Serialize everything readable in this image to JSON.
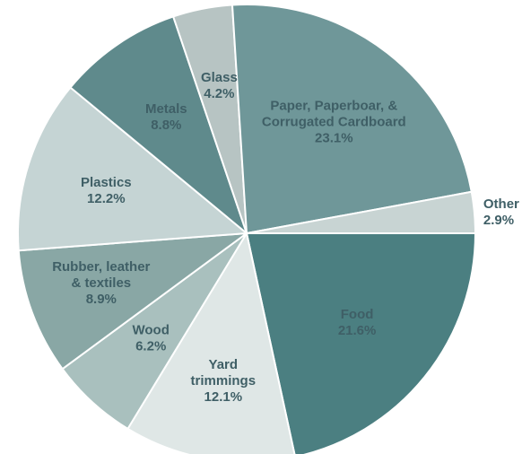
{
  "chart_data": {
    "type": "pie",
    "start_angle_deg": 0,
    "direction": "clockwise",
    "slices": [
      {
        "name": "Food",
        "lines": [
          "Food"
        ],
        "value": 21.6,
        "value_label": "21.6%",
        "color": "#4b7f81"
      },
      {
        "name": "Yard trimmings",
        "lines": [
          "Yard",
          "trimmings"
        ],
        "value": 12.1,
        "value_label": "12.1%",
        "color": "#dfe7e6"
      },
      {
        "name": "Wood",
        "lines": [
          "Wood"
        ],
        "value": 6.2,
        "value_label": "6.2%",
        "color": "#a9c0be"
      },
      {
        "name": "Rubber, leather & textiles",
        "lines": [
          "Rubber, leather",
          "& textiles"
        ],
        "value": 8.9,
        "value_label": "8.9%",
        "color": "#89a7a5"
      },
      {
        "name": "Plastics",
        "lines": [
          "Plastics"
        ],
        "value": 12.2,
        "value_label": "12.2%",
        "color": "#c5d4d4"
      },
      {
        "name": "Metals",
        "lines": [
          "Metals"
        ],
        "value": 8.8,
        "value_label": "8.8%",
        "color": "#5f8a8c"
      },
      {
        "name": "Glass",
        "lines": [
          "Glass"
        ],
        "value": 4.2,
        "value_label": "4.2%",
        "color": "#b7c4c3"
      },
      {
        "name": "Paper, Paperboar, & Corrugated Cardboard",
        "lines": [
          "Paper, Paperboar, &",
          "Corrugated Cardboard"
        ],
        "value": 23.1,
        "value_label": "23.1%",
        "color": "#6f9799"
      },
      {
        "name": "Other",
        "lines": [
          "Other"
        ],
        "value": 2.9,
        "value_label": "2.9%",
        "color": "#c8d4d3",
        "label_outside": true
      }
    ]
  }
}
